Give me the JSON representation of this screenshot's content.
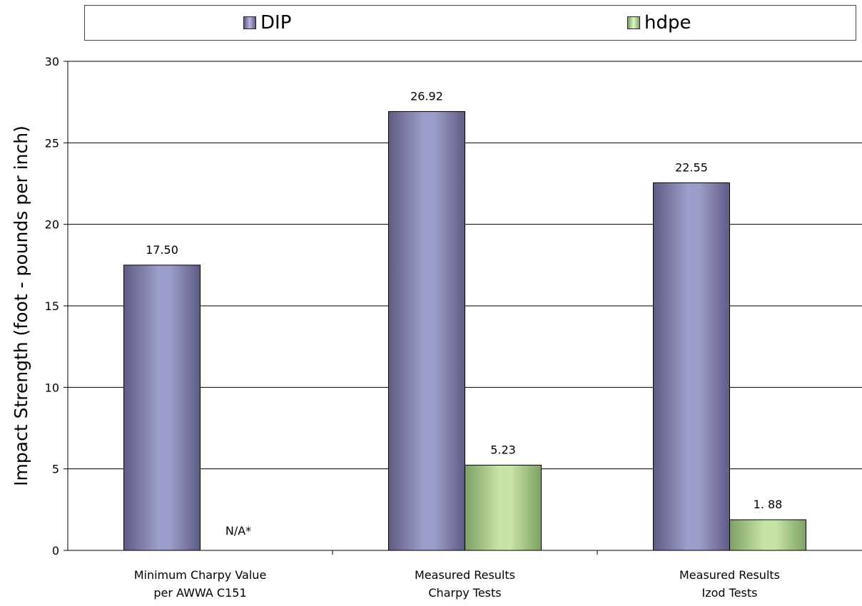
{
  "chart_data": {
    "type": "bar",
    "title": "",
    "xlabel": "",
    "ylabel": "Impact Strength (foot - pounds per inch)",
    "categories": [
      [
        "Minimum Charpy Value",
        "per AWWA C151"
      ],
      [
        "Measured Results",
        "Charpy Tests"
      ],
      [
        "Measured Results",
        "Izod Tests"
      ]
    ],
    "series": [
      {
        "name": "DIP",
        "color": "#9d9dcb",
        "edge": "#5c5c84",
        "values": [
          17.5,
          26.92,
          22.55
        ],
        "labels": [
          "17.50",
          "26.92",
          "22.55"
        ]
      },
      {
        "name": "hdpe",
        "color": "#c6e4a4",
        "edge": "#7fa065",
        "values": [
          null,
          5.23,
          1.88
        ],
        "labels": [
          "N/A*",
          "5.23",
          "1. 88"
        ]
      }
    ],
    "ylim": [
      0,
      30
    ],
    "yticks": [
      0,
      5,
      10,
      15,
      20,
      25,
      30
    ],
    "grid": true,
    "legend": "top"
  }
}
